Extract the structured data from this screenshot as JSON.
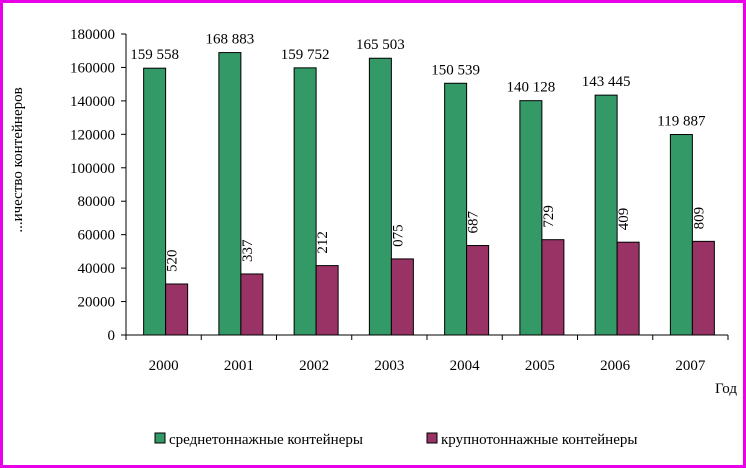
{
  "chart_data": {
    "type": "bar",
    "title": "",
    "xlabel": "Год",
    "ylabel": "...ичество контейнеров",
    "categories": [
      "2000",
      "2001",
      "2002",
      "2003",
      "2004",
      "2005",
      "2006",
      "2007"
    ],
    "ylim": [
      0,
      180000
    ],
    "yticks": [
      "0",
      "20000",
      "40000",
      "60000",
      "80000",
      "100000",
      "120000",
      "140000",
      "160000",
      "180000"
    ],
    "grid": false,
    "legend": "bottom",
    "series": [
      {
        "name": "среднетоннажные контейнеры",
        "color": "#339966",
        "values": [
          159558,
          168883,
          159752,
          165503,
          150539,
          140128,
          143445,
          119887
        ],
        "labels": [
          "159 558",
          "168 883",
          "159 752",
          "165 503",
          "150 539",
          "140 128",
          "143 445",
          "119 887"
        ]
      },
      {
        "name": "крупнотоннажные контейнеры",
        "color": "#993366",
        "values": [
          30500,
          36500,
          41500,
          45500,
          53500,
          57000,
          55500,
          56000
        ],
        "labels": [
          "520",
          "337",
          "212",
          "075",
          "687",
          "729",
          "409",
          "809"
        ]
      }
    ]
  }
}
